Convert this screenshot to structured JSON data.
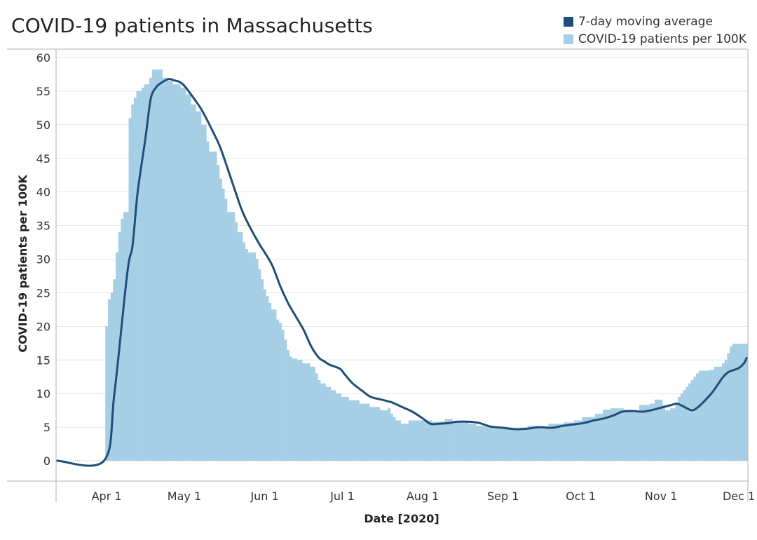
{
  "title": "COVID-19 patients in Massachusetts",
  "colors": {
    "average": "#1f4e79",
    "bars": "#a6cee4",
    "grid": "#e6e6e6",
    "axis": "#b3b3b3"
  },
  "legend": [
    {
      "label": "7-day moving average",
      "color": "#1f4e79"
    },
    {
      "label": "COVID-19 patients per 100K",
      "color": "#a6cee4"
    }
  ],
  "chart_data": {
    "type": "area",
    "title": "COVID-19 patients in Massachusetts",
    "xlabel": "Date [2020]",
    "ylabel": "COVID-19 patients per 100K",
    "ylim": [
      0,
      60
    ],
    "yticks": [
      0,
      5,
      10,
      15,
      20,
      25,
      30,
      35,
      40,
      45,
      50,
      55,
      60
    ],
    "xlim": [
      "2020-03-13",
      "2020-12-04"
    ],
    "xticks": [
      {
        "date": "2020-04-01",
        "label": "Apr 1"
      },
      {
        "date": "2020-05-01",
        "label": "May 1"
      },
      {
        "date": "2020-06-01",
        "label": "Jun 1"
      },
      {
        "date": "2020-07-01",
        "label": "Jul 1"
      },
      {
        "date": "2020-08-01",
        "label": "Aug 1"
      },
      {
        "date": "2020-09-01",
        "label": "Sep 1"
      },
      {
        "date": "2020-10-01",
        "label": "Oct 1"
      },
      {
        "date": "2020-11-01",
        "label": "Nov 1"
      },
      {
        "date": "2020-12-01",
        "label": "Dec 1"
      }
    ],
    "grid": true,
    "legend_position": "top-right",
    "series": [
      {
        "name": "COVID-19 patients per 100K",
        "kind": "bars",
        "points": [
          [
            "2020-03-13",
            0
          ],
          [
            "2020-03-31",
            0
          ],
          [
            "2020-04-01",
            20
          ],
          [
            "2020-04-02",
            24
          ],
          [
            "2020-04-03",
            25
          ],
          [
            "2020-04-04",
            27
          ],
          [
            "2020-04-05",
            31
          ],
          [
            "2020-04-06",
            34
          ],
          [
            "2020-04-07",
            36
          ],
          [
            "2020-04-08",
            37
          ],
          [
            "2020-04-10",
            51
          ],
          [
            "2020-04-11",
            53
          ],
          [
            "2020-04-12",
            54
          ],
          [
            "2020-04-13",
            55
          ],
          [
            "2020-04-15",
            55.5
          ],
          [
            "2020-04-16",
            56
          ],
          [
            "2020-04-18",
            57
          ],
          [
            "2020-04-19",
            58.2
          ],
          [
            "2020-04-23",
            57
          ],
          [
            "2020-04-25",
            56.5
          ],
          [
            "2020-04-27",
            56
          ],
          [
            "2020-04-30",
            55.5
          ],
          [
            "2020-05-02",
            54.5
          ],
          [
            "2020-05-04",
            53
          ],
          [
            "2020-05-06",
            52
          ],
          [
            "2020-05-08",
            50
          ],
          [
            "2020-05-10",
            47.5
          ],
          [
            "2020-05-11",
            46
          ],
          [
            "2020-05-14",
            44
          ],
          [
            "2020-05-15",
            42
          ],
          [
            "2020-05-16",
            40.5
          ],
          [
            "2020-05-17",
            39
          ],
          [
            "2020-05-18",
            37
          ],
          [
            "2020-05-21",
            35.5
          ],
          [
            "2020-05-22",
            34
          ],
          [
            "2020-05-24",
            32.5
          ],
          [
            "2020-05-25",
            31.5
          ],
          [
            "2020-05-26",
            31
          ],
          [
            "2020-05-29",
            30
          ],
          [
            "2020-05-30",
            28.5
          ],
          [
            "2020-05-31",
            27
          ],
          [
            "2020-06-01",
            25.5
          ],
          [
            "2020-06-02",
            24.5
          ],
          [
            "2020-06-03",
            23.5
          ],
          [
            "2020-06-04",
            22.5
          ],
          [
            "2020-06-06",
            21
          ],
          [
            "2020-06-07",
            20.5
          ],
          [
            "2020-06-08",
            19.5
          ],
          [
            "2020-06-09",
            18
          ],
          [
            "2020-06-10",
            16.5
          ],
          [
            "2020-06-11",
            15.5
          ],
          [
            "2020-06-12",
            15.2
          ],
          [
            "2020-06-14",
            15
          ],
          [
            "2020-06-16",
            14.5
          ],
          [
            "2020-06-19",
            14
          ],
          [
            "2020-06-21",
            13
          ],
          [
            "2020-06-22",
            12
          ],
          [
            "2020-06-23",
            11.5
          ],
          [
            "2020-06-25",
            11
          ],
          [
            "2020-06-27",
            10.5
          ],
          [
            "2020-06-29",
            10
          ],
          [
            "2020-07-01",
            9.5
          ],
          [
            "2020-07-04",
            9
          ],
          [
            "2020-07-08",
            8.5
          ],
          [
            "2020-07-12",
            8
          ],
          [
            "2020-07-16",
            7.5
          ],
          [
            "2020-07-19",
            7.8
          ],
          [
            "2020-07-20",
            7
          ],
          [
            "2020-07-21",
            6.5
          ],
          [
            "2020-07-22",
            6
          ],
          [
            "2020-07-24",
            5.5
          ],
          [
            "2020-07-27",
            6
          ],
          [
            "2020-08-01",
            6
          ],
          [
            "2020-08-05",
            5.8
          ],
          [
            "2020-08-10",
            6.2
          ],
          [
            "2020-08-13",
            5.8
          ],
          [
            "2020-08-19",
            5.5
          ],
          [
            "2020-08-22",
            5.2
          ],
          [
            "2020-08-25",
            5
          ],
          [
            "2020-08-29",
            4.8
          ],
          [
            "2020-09-03",
            4.7
          ],
          [
            "2020-09-08",
            4.9
          ],
          [
            "2020-09-11",
            5.2
          ],
          [
            "2020-09-15",
            5.1
          ],
          [
            "2020-09-19",
            5.5
          ],
          [
            "2020-09-25",
            5.7
          ],
          [
            "2020-09-29",
            6
          ],
          [
            "2020-10-02",
            6.5
          ],
          [
            "2020-10-07",
            7
          ],
          [
            "2020-10-10",
            7.6
          ],
          [
            "2020-10-13",
            7.8
          ],
          [
            "2020-10-18",
            7.6
          ],
          [
            "2020-10-21",
            7.4
          ],
          [
            "2020-10-24",
            8.3
          ],
          [
            "2020-10-28",
            8.5
          ],
          [
            "2020-10-30",
            9.1
          ],
          [
            "2020-11-02",
            8.3
          ],
          [
            "2020-11-03",
            7.5
          ],
          [
            "2020-11-05",
            7.8
          ],
          [
            "2020-11-07",
            8.5
          ],
          [
            "2020-11-08",
            9.5
          ],
          [
            "2020-11-09",
            10
          ],
          [
            "2020-11-10",
            10.5
          ],
          [
            "2020-11-11",
            11
          ],
          [
            "2020-11-12",
            11.5
          ],
          [
            "2020-11-13",
            12
          ],
          [
            "2020-11-14",
            12.5
          ],
          [
            "2020-11-15",
            13
          ],
          [
            "2020-11-16",
            13.4
          ],
          [
            "2020-11-20",
            13.5
          ],
          [
            "2020-11-22",
            14
          ],
          [
            "2020-11-25",
            14.5
          ],
          [
            "2020-11-26",
            15
          ],
          [
            "2020-11-27",
            16
          ],
          [
            "2020-11-28",
            17
          ],
          [
            "2020-11-29",
            17.4
          ],
          [
            "2020-12-04",
            17.4
          ]
        ]
      },
      {
        "name": "7-day moving average",
        "kind": "line",
        "points": [
          [
            "2020-03-13",
            0
          ],
          [
            "2020-03-31",
            0
          ],
          [
            "2020-04-04",
            10
          ],
          [
            "2020-04-09",
            28
          ],
          [
            "2020-04-11",
            32
          ],
          [
            "2020-04-13",
            40
          ],
          [
            "2020-04-16",
            48
          ],
          [
            "2020-04-18",
            53.8
          ],
          [
            "2020-04-20",
            55.5
          ],
          [
            "2020-04-22",
            56.2
          ],
          [
            "2020-04-25",
            56.8
          ],
          [
            "2020-04-27",
            56.6
          ],
          [
            "2020-04-29",
            56.4
          ],
          [
            "2020-05-01",
            55.8
          ],
          [
            "2020-05-03",
            54.8
          ],
          [
            "2020-05-06",
            53.2
          ],
          [
            "2020-05-08",
            52
          ],
          [
            "2020-05-12",
            49
          ],
          [
            "2020-05-15",
            46.5
          ],
          [
            "2020-05-19",
            42
          ],
          [
            "2020-05-23",
            37.5
          ],
          [
            "2020-05-26",
            35
          ],
          [
            "2020-05-30",
            32.2
          ],
          [
            "2020-06-01",
            31
          ],
          [
            "2020-06-04",
            29
          ],
          [
            "2020-06-07",
            26
          ],
          [
            "2020-06-10",
            23.5
          ],
          [
            "2020-06-13",
            21.5
          ],
          [
            "2020-06-16",
            19.5
          ],
          [
            "2020-06-19",
            17
          ],
          [
            "2020-06-22",
            15.3
          ],
          [
            "2020-06-24",
            14.8
          ],
          [
            "2020-06-26",
            14.3
          ],
          [
            "2020-06-30",
            13.7
          ],
          [
            "2020-07-02",
            12.8
          ],
          [
            "2020-07-05",
            11.5
          ],
          [
            "2020-07-09",
            10.3
          ],
          [
            "2020-07-12",
            9.5
          ],
          [
            "2020-07-16",
            9.1
          ],
          [
            "2020-07-20",
            8.7
          ],
          [
            "2020-07-24",
            8
          ],
          [
            "2020-07-28",
            7.3
          ],
          [
            "2020-08-01",
            6.3
          ],
          [
            "2020-08-04",
            5.5
          ],
          [
            "2020-08-07",
            5.5
          ],
          [
            "2020-08-11",
            5.6
          ],
          [
            "2020-08-14",
            5.8
          ],
          [
            "2020-08-19",
            5.8
          ],
          [
            "2020-08-23",
            5.6
          ],
          [
            "2020-08-27",
            5.1
          ],
          [
            "2020-09-01",
            4.9
          ],
          [
            "2020-09-06",
            4.7
          ],
          [
            "2020-09-11",
            4.8
          ],
          [
            "2020-09-15",
            5
          ],
          [
            "2020-09-20",
            4.9
          ],
          [
            "2020-09-24",
            5.2
          ],
          [
            "2020-09-28",
            5.4
          ],
          [
            "2020-10-02",
            5.6
          ],
          [
            "2020-10-06",
            6
          ],
          [
            "2020-10-10",
            6.3
          ],
          [
            "2020-10-14",
            6.8
          ],
          [
            "2020-10-17",
            7.3
          ],
          [
            "2020-10-21",
            7.4
          ],
          [
            "2020-10-25",
            7.3
          ],
          [
            "2020-10-29",
            7.6
          ],
          [
            "2020-11-02",
            8
          ],
          [
            "2020-11-05",
            8.3
          ],
          [
            "2020-11-07",
            8.5
          ],
          [
            "2020-11-09",
            8.2
          ],
          [
            "2020-11-11",
            7.8
          ],
          [
            "2020-11-13",
            7.5
          ],
          [
            "2020-11-15",
            7.9
          ],
          [
            "2020-11-17",
            8.6
          ],
          [
            "2020-11-19",
            9.4
          ],
          [
            "2020-11-21",
            10.3
          ],
          [
            "2020-11-23",
            11.4
          ],
          [
            "2020-11-25",
            12.5
          ],
          [
            "2020-11-27",
            13.2
          ],
          [
            "2020-11-29",
            13.5
          ],
          [
            "2020-12-01",
            13.8
          ],
          [
            "2020-12-03",
            14.5
          ],
          [
            "2020-12-04",
            15.3
          ]
        ]
      }
    ]
  }
}
